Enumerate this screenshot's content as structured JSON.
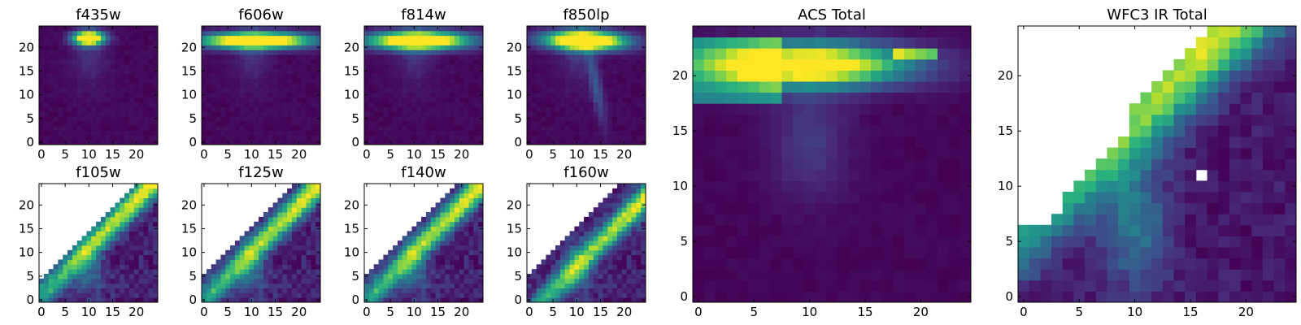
{
  "chart_data": [
    {
      "type": "heatmap",
      "title": "f435w",
      "xlabel": "",
      "ylabel": "",
      "xlim": [
        0,
        24
      ],
      "ylim": [
        0,
        24
      ],
      "xticks": [
        0,
        5,
        10,
        15,
        20
      ],
      "yticks": [
        0,
        5,
        10,
        15,
        20
      ],
      "xtick_labels": [
        "0",
        "5",
        "10",
        "15",
        "20"
      ],
      "ytick_labels": [
        "0",
        "5",
        "10",
        "15",
        "20"
      ]
    },
    {
      "type": "heatmap",
      "title": "f606w",
      "xlabel": "",
      "ylabel": "",
      "xlim": [
        0,
        24
      ],
      "ylim": [
        0,
        24
      ],
      "xticks": [
        0,
        5,
        10,
        15,
        20
      ],
      "yticks": [
        0,
        5,
        10,
        15,
        20
      ],
      "xtick_labels": [
        "0",
        "5",
        "10",
        "15",
        "20"
      ],
      "ytick_labels": [
        "0",
        "5",
        "10",
        "15",
        "20"
      ]
    },
    {
      "type": "heatmap",
      "title": "f814w",
      "xlabel": "",
      "ylabel": "",
      "xlim": [
        0,
        24
      ],
      "ylim": [
        0,
        24
      ],
      "xticks": [
        0,
        5,
        10,
        15,
        20
      ],
      "yticks": [
        0,
        5,
        10,
        15,
        20
      ],
      "xtick_labels": [
        "0",
        "5",
        "10",
        "15",
        "20"
      ],
      "ytick_labels": [
        "0",
        "5",
        "10",
        "15",
        "20"
      ]
    },
    {
      "type": "heatmap",
      "title": "f850lp",
      "xlabel": "",
      "ylabel": "",
      "xlim": [
        0,
        24
      ],
      "ylim": [
        0,
        24
      ],
      "xticks": [
        0,
        5,
        10,
        15,
        20
      ],
      "yticks": [
        0,
        5,
        10,
        15,
        20
      ],
      "xtick_labels": [
        "0",
        "5",
        "10",
        "15",
        "20"
      ],
      "ytick_labels": [
        "0",
        "5",
        "10",
        "15",
        "20"
      ]
    },
    {
      "type": "heatmap",
      "title": "f105w",
      "xlabel": "",
      "ylabel": "",
      "xlim": [
        0,
        24
      ],
      "ylim": [
        0,
        24
      ],
      "xticks": [
        0,
        5,
        10,
        15,
        20
      ],
      "yticks": [
        0,
        5,
        10,
        15,
        20
      ],
      "xtick_labels": [
        "0",
        "5",
        "10",
        "15",
        "20"
      ],
      "ytick_labels": [
        "0",
        "5",
        "10",
        "15",
        "20"
      ]
    },
    {
      "type": "heatmap",
      "title": "f125w",
      "xlabel": "",
      "ylabel": "",
      "xlim": [
        0,
        24
      ],
      "ylim": [
        0,
        24
      ],
      "xticks": [
        0,
        5,
        10,
        15,
        20
      ],
      "yticks": [
        0,
        5,
        10,
        15,
        20
      ],
      "xtick_labels": [
        "0",
        "5",
        "10",
        "15",
        "20"
      ],
      "ytick_labels": [
        "0",
        "5",
        "10",
        "15",
        "20"
      ]
    },
    {
      "type": "heatmap",
      "title": "f140w",
      "xlabel": "",
      "ylabel": "",
      "xlim": [
        0,
        24
      ],
      "ylim": [
        0,
        24
      ],
      "xticks": [
        0,
        5,
        10,
        15,
        20
      ],
      "yticks": [
        0,
        5,
        10,
        15,
        20
      ],
      "xtick_labels": [
        "0",
        "5",
        "10",
        "15",
        "20"
      ],
      "ytick_labels": [
        "0",
        "5",
        "10",
        "15",
        "20"
      ]
    },
    {
      "type": "heatmap",
      "title": "f160w",
      "xlabel": "",
      "ylabel": "",
      "xlim": [
        0,
        24
      ],
      "ylim": [
        0,
        24
      ],
      "xticks": [
        0,
        5,
        10,
        15,
        20
      ],
      "yticks": [
        0,
        5,
        10,
        15,
        20
      ],
      "xtick_labels": [
        "0",
        "5",
        "10",
        "15",
        "20"
      ],
      "ytick_labels": [
        "0",
        "5",
        "10",
        "15",
        "20"
      ]
    },
    {
      "type": "heatmap",
      "title": "ACS Total",
      "xlabel": "",
      "ylabel": "",
      "xlim": [
        0,
        24
      ],
      "ylim": [
        0,
        24
      ],
      "xticks": [
        0,
        5,
        10,
        15,
        20
      ],
      "yticks": [
        0,
        5,
        10,
        15,
        20
      ],
      "xtick_labels": [
        "0",
        "5",
        "10",
        "15",
        "20"
      ],
      "ytick_labels": [
        "0",
        "5",
        "10",
        "15",
        "20"
      ]
    },
    {
      "type": "heatmap",
      "title": "WFC3 IR Total",
      "xlabel": "",
      "ylabel": "",
      "xlim": [
        0,
        24
      ],
      "ylim": [
        0,
        24
      ],
      "xticks": [
        0,
        5,
        10,
        15,
        20
      ],
      "yticks": [
        0,
        5,
        10,
        15,
        20
      ],
      "xtick_labels": [
        "0",
        "5",
        "10",
        "15",
        "20"
      ],
      "ytick_labels": [
        "0",
        "5",
        "10",
        "15",
        "20"
      ]
    }
  ],
  "colormap": [
    "#440154",
    "#472d7b",
    "#3b528b",
    "#2c728e",
    "#21918c",
    "#28ae80",
    "#5ec962",
    "#addc30",
    "#fde725"
  ]
}
